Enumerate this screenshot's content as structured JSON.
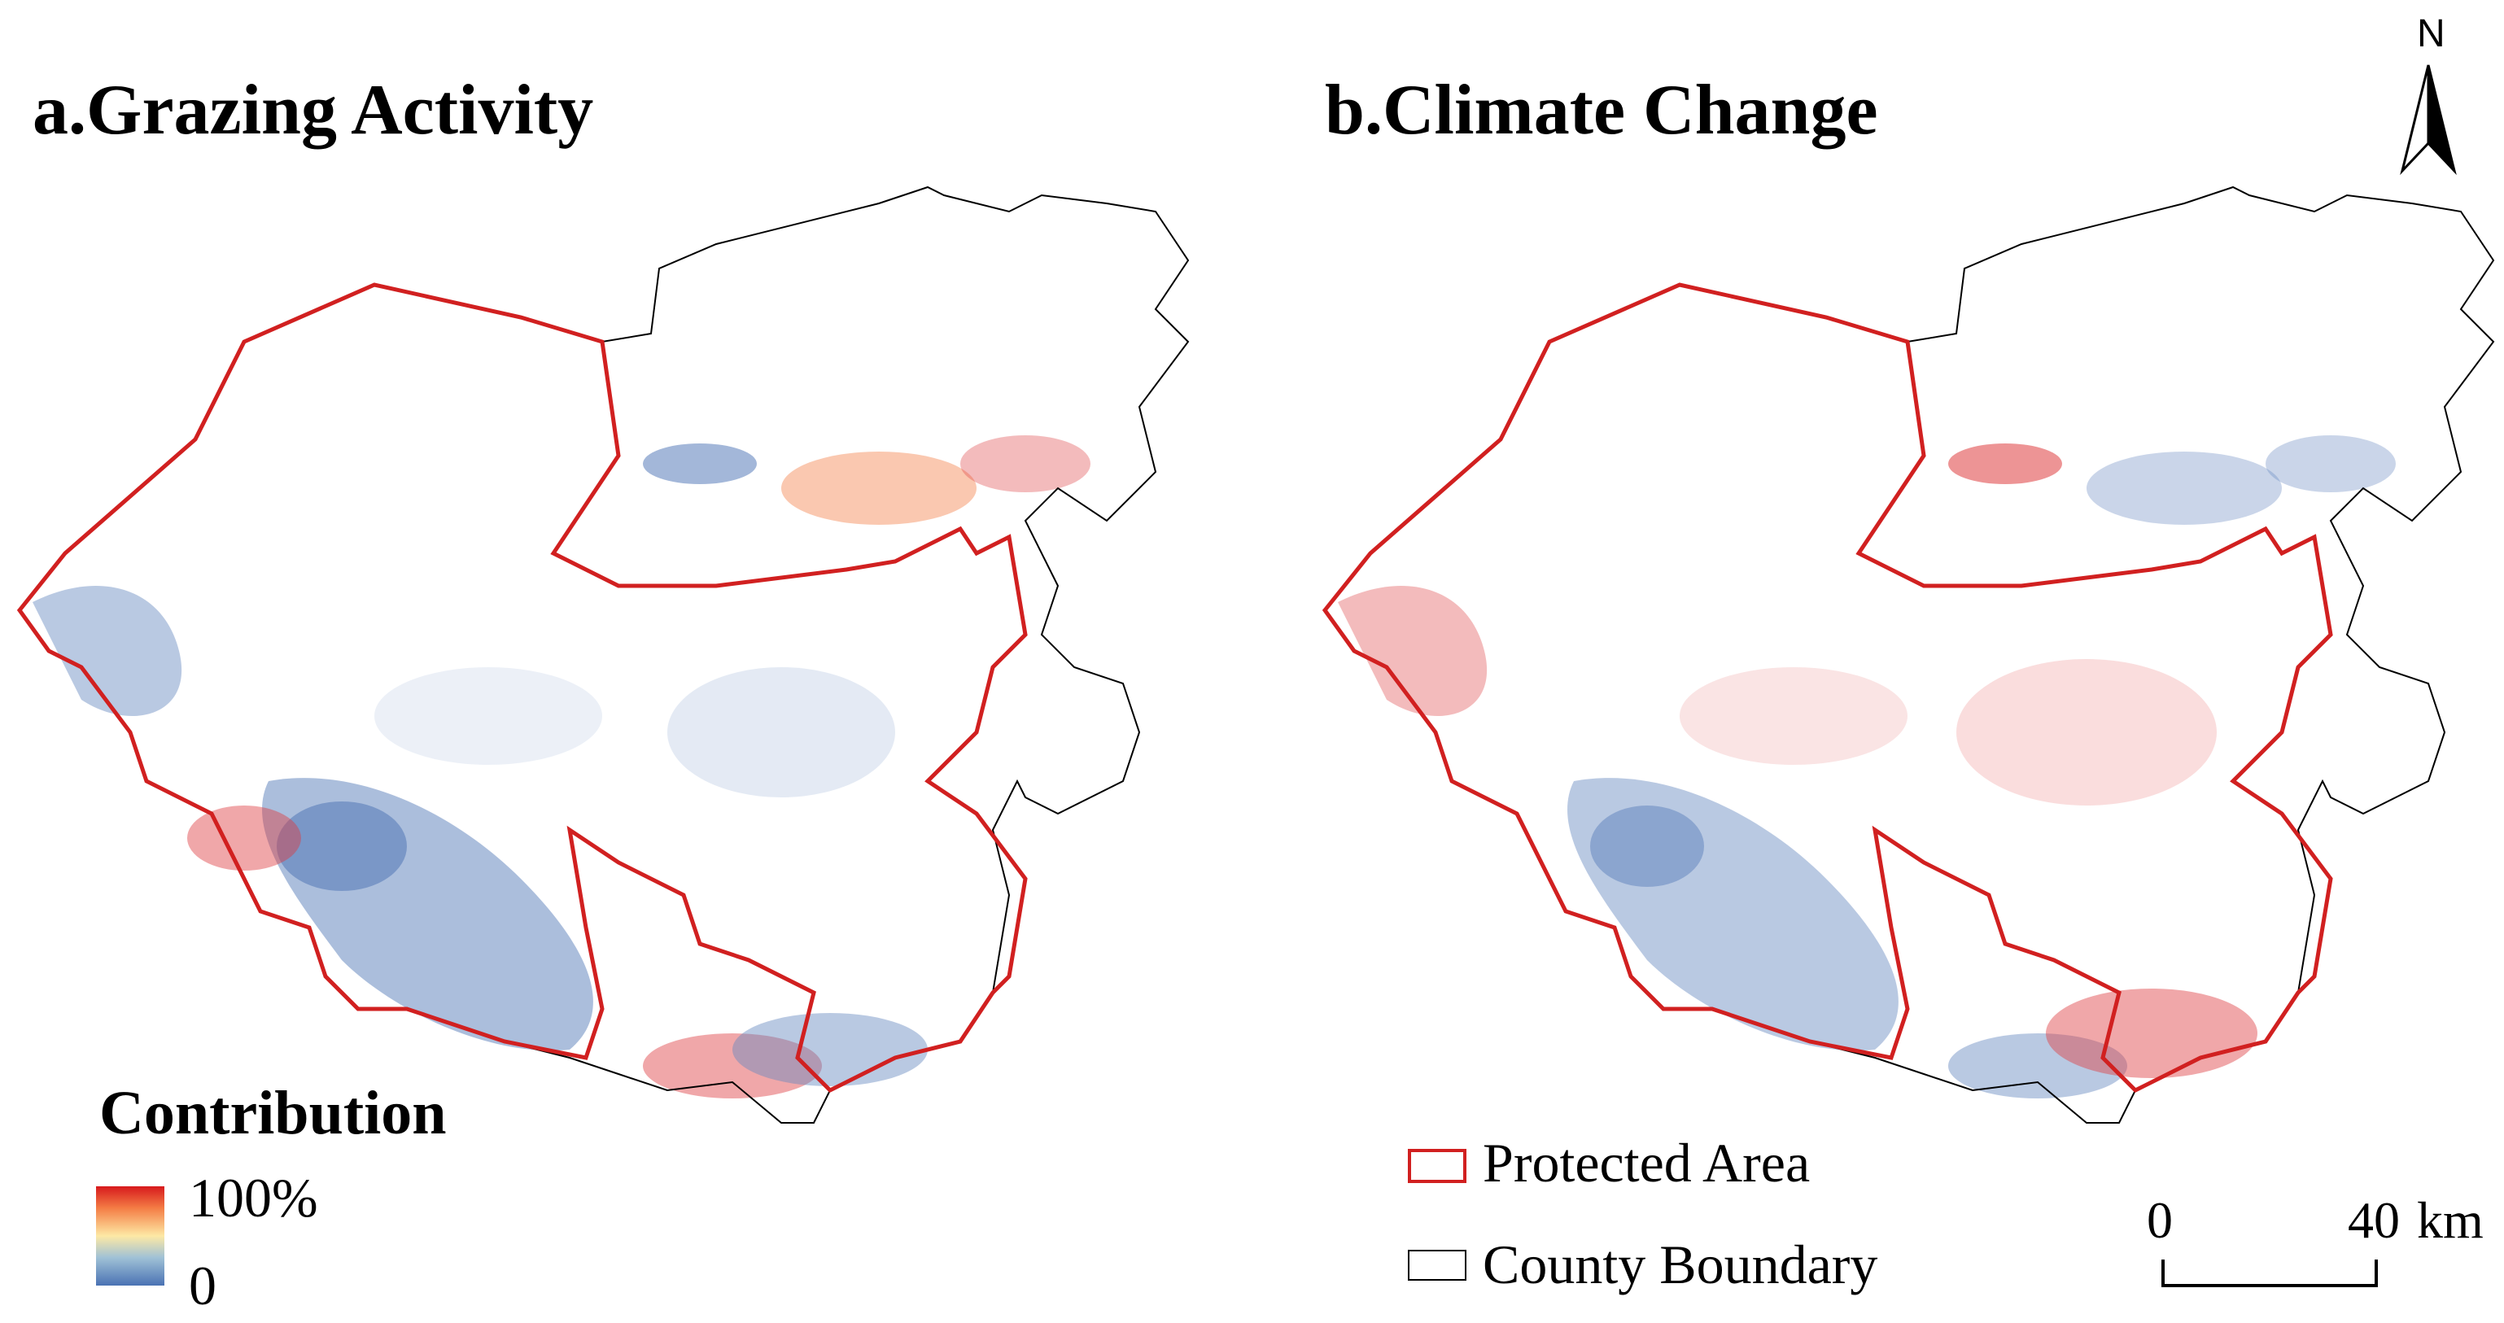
{
  "panels": [
    {
      "id": "a",
      "title": "a.Grazing Activity",
      "dominant_color": "#4a72b4"
    },
    {
      "id": "b",
      "title": "b.Climate Change",
      "dominant_color": "#d7191c"
    }
  ],
  "legend": {
    "contribution_title": "Contribution",
    "ramp_max": "100%",
    "ramp_min": "0",
    "ramp_colors": [
      "#d7191c",
      "#f47d45",
      "#fde9a5",
      "#9fc1d6",
      "#4a72b4"
    ],
    "protected_area": "Protected Area",
    "protected_color": "#d12020",
    "county_boundary": "County Boundary",
    "county_color": "#000000"
  },
  "scale_bar": {
    "start": "0",
    "end": "40",
    "unit": "km"
  },
  "north_arrow": {
    "label": "N",
    "icon": "north-arrow-icon"
  }
}
